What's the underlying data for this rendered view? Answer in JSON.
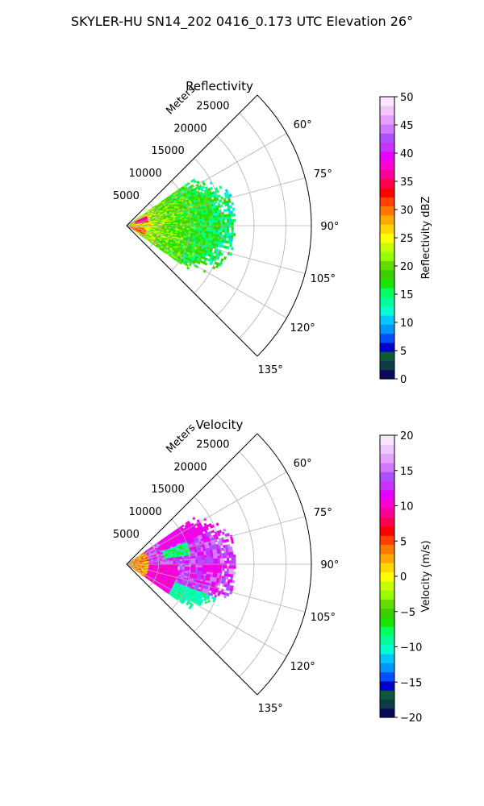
{
  "figure": {
    "suptitle": "SKYLER-HU  SN14_202  0416_0.173 UTC Elevation 26°"
  },
  "chart_data": [
    {
      "type": "polar-sector",
      "title": "Reflectivity",
      "range_label": "Meters",
      "theta_range_deg": [
        45,
        135
      ],
      "r_max_m": 29000,
      "grid": true,
      "range_ticks": [
        {
          "value": 5000,
          "label": "5000"
        },
        {
          "value": 10000,
          "label": "10000"
        },
        {
          "value": 15000,
          "label": "15000"
        },
        {
          "value": 20000,
          "label": "20000"
        },
        {
          "value": 25000,
          "label": "25000"
        }
      ],
      "angle_ticks": [
        {
          "value": 60,
          "label": "60°"
        },
        {
          "value": 75,
          "label": "75°"
        },
        {
          "value": 90,
          "label": "90°"
        },
        {
          "value": 105,
          "label": "105°"
        },
        {
          "value": 120,
          "label": "120°"
        },
        {
          "value": 135,
          "label": "135°"
        }
      ],
      "data_extent": {
        "theta_min_deg": 55,
        "theta_max_deg": 125,
        "r_max_m": 17000
      },
      "colorbar": {
        "label": "Reflectivity dBZ",
        "vmin": 0,
        "vmax": 50,
        "ticks": [
          {
            "value": 0,
            "label": "0"
          },
          {
            "value": 5,
            "label": "5"
          },
          {
            "value": 10,
            "label": "10"
          },
          {
            "value": 15,
            "label": "15"
          },
          {
            "value": 20,
            "label": "20"
          },
          {
            "value": 25,
            "label": "25"
          },
          {
            "value": 30,
            "label": "30"
          },
          {
            "value": 35,
            "label": "35"
          },
          {
            "value": 40,
            "label": "40"
          },
          {
            "value": 45,
            "label": "45"
          },
          {
            "value": 50,
            "label": "50"
          }
        ],
        "colors": [
          "#0a0a5a",
          "#103c48",
          "#0c5a3a",
          "#0000c8",
          "#0050ff",
          "#0096ff",
          "#00c8ff",
          "#00ffd0",
          "#00ff9a",
          "#00ff60",
          "#19e600",
          "#3ccf00",
          "#64dc00",
          "#96ff00",
          "#c8ff00",
          "#ffff00",
          "#ffd700",
          "#ffaa00",
          "#ff7800",
          "#ff4000",
          "#ff0000",
          "#ff0050",
          "#ff0096",
          "#ff00d2",
          "#e600ff",
          "#c832ff",
          "#aa50ff",
          "#d278ff",
          "#e6a0ff",
          "#f0c8ff",
          "#fae6ff"
        ]
      }
    },
    {
      "type": "polar-sector",
      "title": "Velocity",
      "range_label": "Meters",
      "theta_range_deg": [
        45,
        135
      ],
      "r_max_m": 29000,
      "grid": true,
      "range_ticks": [
        {
          "value": 5000,
          "label": "5000"
        },
        {
          "value": 10000,
          "label": "10000"
        },
        {
          "value": 15000,
          "label": "15000"
        },
        {
          "value": 20000,
          "label": "20000"
        },
        {
          "value": 25000,
          "label": "25000"
        }
      ],
      "angle_ticks": [
        {
          "value": 60,
          "label": "60°"
        },
        {
          "value": 75,
          "label": "75°"
        },
        {
          "value": 90,
          "label": "90°"
        },
        {
          "value": 105,
          "label": "105°"
        },
        {
          "value": 120,
          "label": "120°"
        },
        {
          "value": 135,
          "label": "135°"
        }
      ],
      "data_extent": {
        "theta_min_deg": 55,
        "theta_max_deg": 125,
        "r_max_m": 17000
      },
      "colorbar": {
        "label": "Velocity (m/s)",
        "vmin": -20,
        "vmax": 20,
        "ticks": [
          {
            "value": -20,
            "label": "−20"
          },
          {
            "value": -15,
            "label": "−15"
          },
          {
            "value": -10,
            "label": "−10"
          },
          {
            "value": -5,
            "label": "−5"
          },
          {
            "value": 0,
            "label": "0"
          },
          {
            "value": 5,
            "label": "5"
          },
          {
            "value": 10,
            "label": "10"
          },
          {
            "value": 15,
            "label": "15"
          },
          {
            "value": 20,
            "label": "20"
          }
        ],
        "colors": [
          "#0a0a5a",
          "#103c48",
          "#0c5a3a",
          "#0000c8",
          "#0050ff",
          "#0096ff",
          "#00c8ff",
          "#00ffd0",
          "#00ff9a",
          "#00ff60",
          "#19e600",
          "#3ccf00",
          "#64dc00",
          "#96ff00",
          "#c8ff00",
          "#ffff00",
          "#ffd700",
          "#ffaa00",
          "#ff7800",
          "#ff4000",
          "#ff0000",
          "#ff0050",
          "#ff0096",
          "#ff00d2",
          "#e600ff",
          "#c832ff",
          "#aa50ff",
          "#d278ff",
          "#e6a0ff",
          "#f0c8ff",
          "#fae6ff"
        ]
      }
    }
  ]
}
